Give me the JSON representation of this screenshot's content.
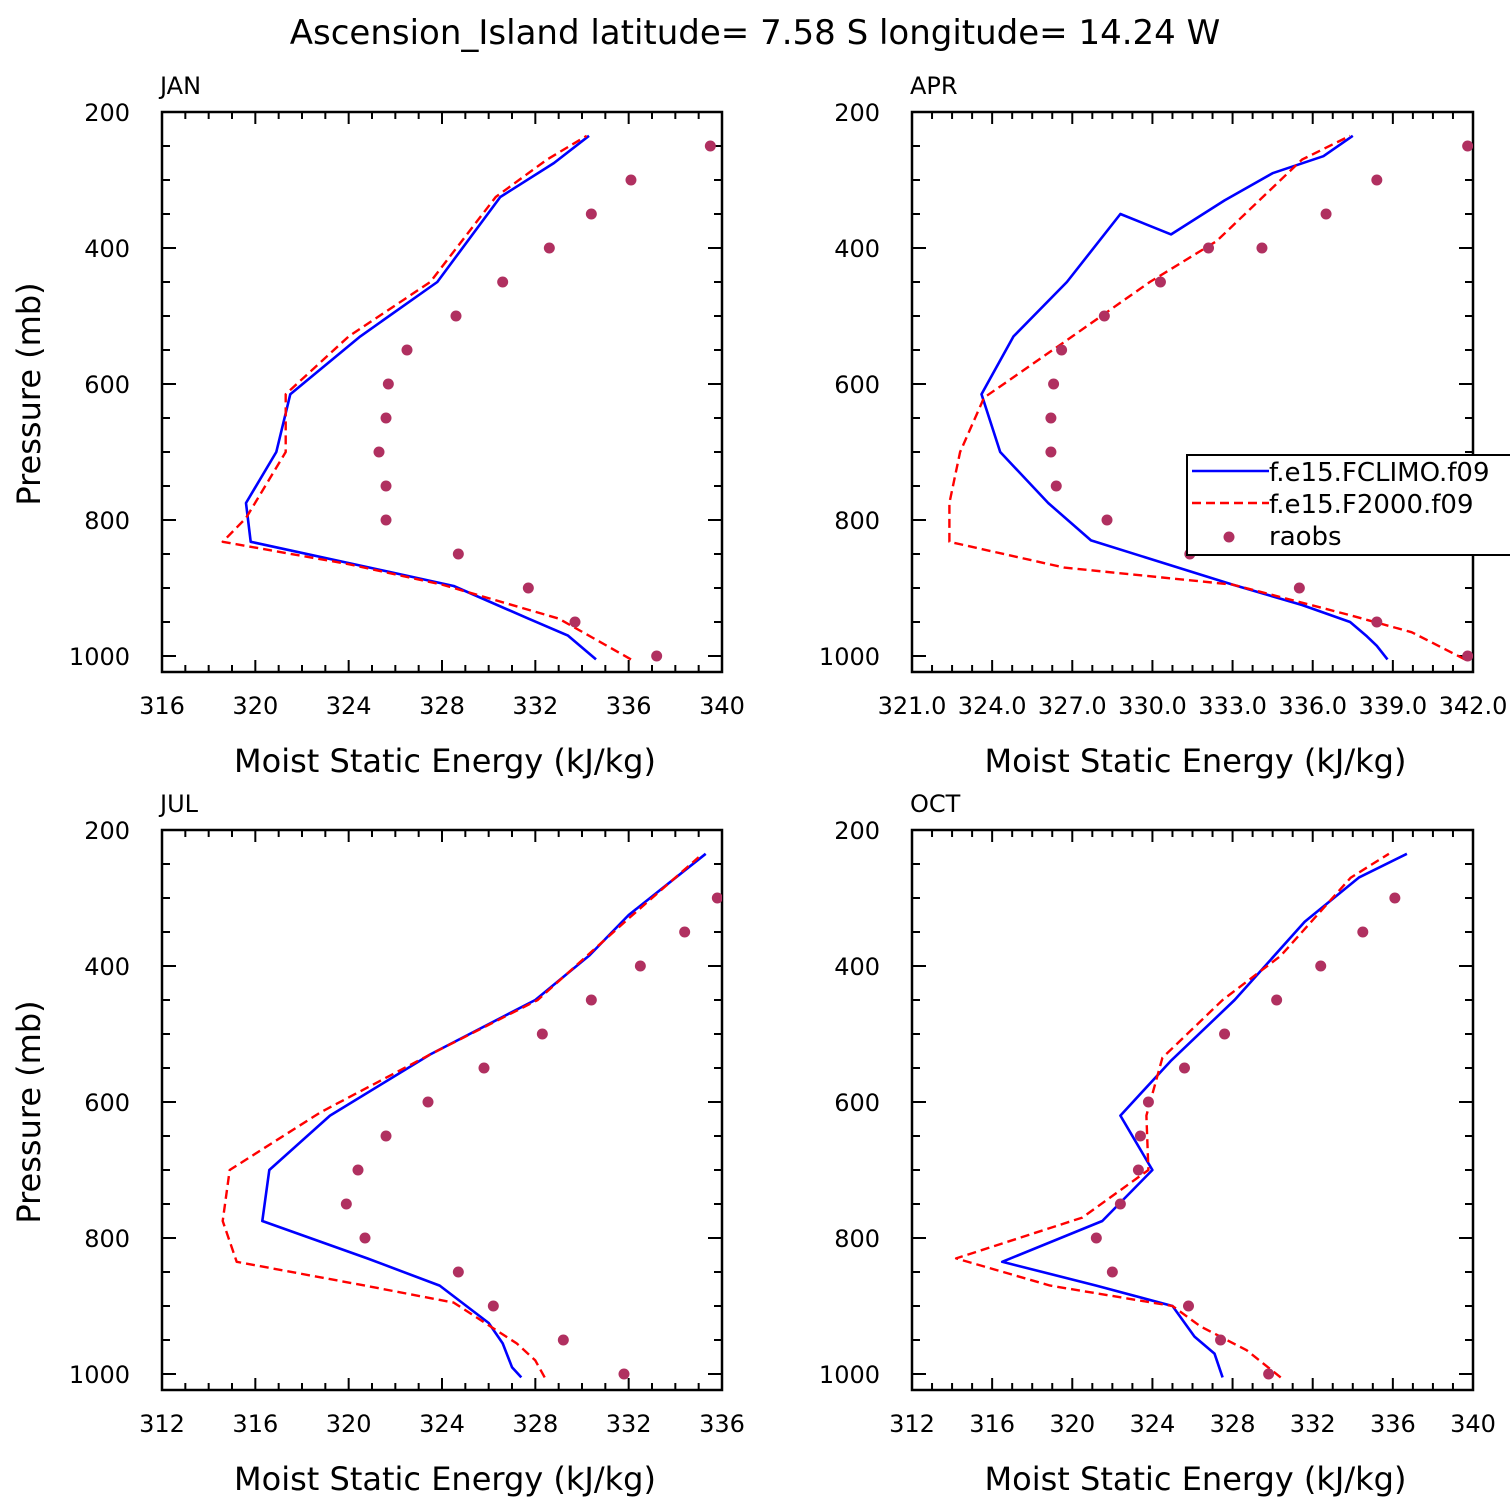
{
  "figure_title": "Ascension_Island  latitude= 7.58 S longitude= 14.24 W",
  "legend": {
    "items": [
      {
        "label": "f.e15.FCLIMO.f09",
        "style": "blue-solid",
        "color": "#0000ff"
      },
      {
        "label": "f.e15.F2000.f09",
        "style": "red-dashed",
        "color": "#ff0000"
      },
      {
        "label": "raobs",
        "style": "dot",
        "color": "#b03060"
      }
    ]
  },
  "chart_data": [
    {
      "type": "line",
      "panel": "JAN",
      "xlabel": "Moist Static Energy (kJ/kg)",
      "ylabel": "Pressure (mb)",
      "xlim": [
        316,
        340
      ],
      "ylim": [
        1000,
        200
      ],
      "xticks": [
        316,
        320,
        324,
        328,
        332,
        336,
        340
      ],
      "xtick_labels": [
        "316",
        "320",
        "324",
        "328",
        "332",
        "336",
        "340"
      ],
      "yticks": [
        200,
        400,
        600,
        800,
        1000
      ],
      "series": [
        {
          "name": "f.e15.FCLIMO.f09",
          "x": [
            334.6,
            333.4,
            331.7,
            328.5,
            324.9,
            319.8,
            319.6,
            320.9,
            321.5,
            324.5,
            327.8,
            330.5,
            332.8,
            334.3
          ],
          "y": [
            1005,
            970,
            945,
            897,
            870,
            832,
            775,
            700,
            615,
            530,
            450,
            325,
            275,
            235
          ]
        },
        {
          "name": "f.e15.F2000.f09",
          "x": [
            336.1,
            333.0,
            328.0,
            324.0,
            318.6,
            319.6,
            321.3,
            321.3,
            324.0,
            327.5,
            330.3,
            332.5,
            334.2
          ],
          "y": [
            1005,
            945,
            895,
            865,
            832,
            797,
            700,
            615,
            530,
            450,
            325,
            270,
            235
          ]
        },
        {
          "name": "raobs",
          "x": [
            337.2,
            333.7,
            331.7,
            328.7,
            325.6,
            325.6,
            325.3,
            325.6,
            325.7,
            326.5,
            328.6,
            330.6,
            332.6,
            334.4,
            336.1,
            339.5
          ],
          "y": [
            1000,
            950,
            900,
            850,
            800,
            750,
            700,
            650,
            600,
            550,
            500,
            450,
            400,
            350,
            300,
            250
          ]
        }
      ]
    },
    {
      "type": "line",
      "panel": "APR",
      "xlabel": "Moist Static Energy (kJ/kg)",
      "ylabel": "",
      "xlim": [
        321,
        342
      ],
      "ylim": [
        1000,
        200
      ],
      "xticks": [
        321,
        324,
        327,
        330,
        333,
        336,
        339,
        342
      ],
      "xtick_labels": [
        "321.0",
        "324.0",
        "327.0",
        "330.0",
        "333.0",
        "336.0",
        "339.0",
        "342.0"
      ],
      "yticks": [
        200,
        400,
        600,
        800,
        1000
      ],
      "series": [
        {
          "name": "f.e15.FCLIMO.f09",
          "x": [
            338.8,
            338.4,
            338.0,
            337.4,
            335.6,
            333.0,
            327.7,
            326.1,
            324.3,
            323.6,
            324.8,
            326.8,
            328.8,
            330.7,
            332.7,
            334.5,
            336.4,
            337.5
          ],
          "y": [
            1005,
            985,
            970,
            950,
            925,
            895,
            830,
            775,
            700,
            615,
            530,
            450,
            350,
            380,
            330,
            290,
            265,
            235
          ]
        },
        {
          "name": "f.e15.F2000.f09",
          "x": [
            341.7,
            339.7,
            337.4,
            333.0,
            326.7,
            322.4,
            322.4,
            322.8,
            323.7,
            327.0,
            329.9,
            332.4,
            335.6,
            337.4
          ],
          "y": [
            1005,
            965,
            940,
            895,
            870,
            832,
            775,
            700,
            620,
            530,
            450,
            390,
            270,
            235
          ]
        },
        {
          "name": "raobs",
          "x": [
            341.8,
            338.4,
            335.5,
            331.4,
            328.3,
            326.4,
            326.2,
            326.2,
            326.3,
            326.6,
            328.2,
            330.3,
            332.1,
            334.1,
            336.5,
            338.4,
            341.8
          ],
          "y": [
            1000,
            950,
            900,
            850,
            800,
            750,
            700,
            650,
            600,
            550,
            500,
            450,
            400,
            400,
            350,
            300,
            250
          ]
        }
      ]
    },
    {
      "type": "line",
      "panel": "JUL",
      "xlabel": "Moist Static Energy (kJ/kg)",
      "ylabel": "Pressure (mb)",
      "xlim": [
        312,
        336
      ],
      "ylim": [
        1000,
        200
      ],
      "xticks": [
        312,
        316,
        320,
        324,
        328,
        332,
        336
      ],
      "xtick_labels": [
        "312",
        "316",
        "320",
        "324",
        "328",
        "332",
        "336"
      ],
      "yticks": [
        200,
        400,
        600,
        800,
        1000
      ],
      "series": [
        {
          "name": "f.e15.FCLIMO.f09",
          "x": [
            327.4,
            327.0,
            326.6,
            326.0,
            323.9,
            320.8,
            316.3,
            316.6,
            319.2,
            323.5,
            328.0,
            330.3,
            332.0,
            335.3
          ],
          "y": [
            1005,
            990,
            955,
            925,
            870,
            830,
            775,
            700,
            620,
            530,
            450,
            385,
            325,
            235
          ]
        },
        {
          "name": "f.e15.F2000.f09",
          "x": [
            328.4,
            328.0,
            327.2,
            324.5,
            320.7,
            315.2,
            314.6,
            314.9,
            318.8,
            323.5,
            328.1,
            332.0,
            335.0
          ],
          "y": [
            1005,
            980,
            955,
            895,
            870,
            835,
            775,
            700,
            615,
            530,
            450,
            330,
            240
          ]
        },
        {
          "name": "raobs",
          "x": [
            331.8,
            329.2,
            326.2,
            324.7,
            320.7,
            319.9,
            320.4,
            321.6,
            323.4,
            325.8,
            328.3,
            330.4,
            332.5,
            334.4,
            335.8
          ],
          "y": [
            1000,
            950,
            900,
            850,
            800,
            750,
            700,
            650,
            600,
            550,
            500,
            450,
            400,
            350,
            300
          ]
        }
      ]
    },
    {
      "type": "line",
      "panel": "OCT",
      "xlabel": "Moist Static Energy (kJ/kg)",
      "ylabel": "",
      "xlim": [
        312,
        340
      ],
      "ylim": [
        1000,
        200
      ],
      "xticks": [
        312,
        316,
        320,
        324,
        328,
        332,
        336,
        340
      ],
      "xtick_labels": [
        "312",
        "316",
        "320",
        "324",
        "328",
        "332",
        "336",
        "340"
      ],
      "yticks": [
        200,
        400,
        600,
        800,
        1000
      ],
      "series": [
        {
          "name": "f.e15.FCLIMO.f09",
          "x": [
            327.5,
            327.1,
            326.1,
            325.0,
            321.2,
            316.5,
            321.5,
            324.0,
            322.4,
            324.9,
            328.1,
            331.6,
            334.3,
            336.7
          ],
          "y": [
            1005,
            970,
            945,
            900,
            870,
            835,
            775,
            700,
            620,
            540,
            450,
            335,
            270,
            235
          ]
        },
        {
          "name": "f.e15.F2000.f09",
          "x": [
            330.4,
            328.7,
            326.4,
            325.0,
            318.9,
            314.2,
            320.5,
            323.8,
            323.7,
            324.5,
            327.5,
            330.4,
            333.9,
            335.8
          ],
          "y": [
            1005,
            965,
            930,
            900,
            870,
            830,
            770,
            700,
            620,
            535,
            450,
            385,
            270,
            235
          ]
        },
        {
          "name": "raobs",
          "x": [
            329.8,
            327.4,
            325.8,
            322.0,
            321.2,
            322.4,
            323.3,
            323.4,
            323.8,
            325.6,
            327.6,
            330.2,
            332.4,
            334.5,
            336.1
          ],
          "y": [
            1000,
            950,
            900,
            850,
            800,
            750,
            700,
            650,
            600,
            550,
            500,
            450,
            400,
            350,
            300
          ]
        }
      ]
    }
  ]
}
